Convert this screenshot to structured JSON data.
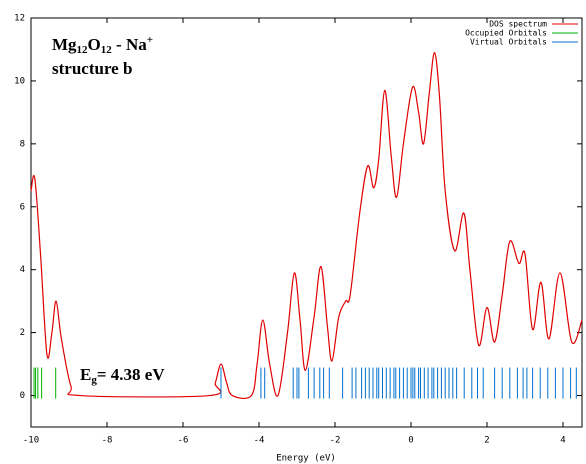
{
  "chart_data": {
    "type": "line",
    "xlabel": "Energy (eV)",
    "xlim": [
      -10,
      4.5
    ],
    "ylim": [
      -1,
      12
    ],
    "xticks": [
      -10,
      -8,
      -6,
      -4,
      -2,
      0,
      2,
      4
    ],
    "yticks": [
      0,
      2,
      4,
      6,
      8,
      10,
      12
    ],
    "legend": "upper right",
    "series": [
      {
        "name": "DOS spectrum",
        "color": "#e00000",
        "x": [
          -10,
          -9.9,
          -9.75,
          -9.58,
          -9.45,
          -9.34,
          -9.2,
          -8.95,
          -8.7,
          -5.3,
          -5.15,
          -5.0,
          -4.85,
          -4.7,
          -4.2,
          -4.05,
          -3.9,
          -3.72,
          -3.5,
          -3.25,
          -3.07,
          -2.92,
          -2.78,
          -2.55,
          -2.37,
          -2.2,
          -2.08,
          -1.9,
          -1.72,
          -1.6,
          -1.35,
          -1.14,
          -0.98,
          -0.85,
          -0.69,
          -0.52,
          -0.38,
          -0.2,
          0.04,
          0.2,
          0.33,
          0.48,
          0.62,
          0.75,
          0.9,
          1.15,
          1.39,
          1.55,
          1.78,
          2.0,
          2.2,
          2.4,
          2.6,
          2.84,
          3.0,
          3.2,
          3.42,
          3.63,
          3.92,
          4.23,
          4.5
        ],
        "values": [
          6.5,
          6.9,
          4.5,
          1.3,
          2.0,
          3.0,
          1.8,
          0.3,
          0,
          0,
          0.4,
          1.0,
          0.4,
          0,
          0,
          1.0,
          2.4,
          1.0,
          0,
          2.0,
          3.9,
          2.4,
          0.8,
          2.5,
          4.1,
          2.2,
          1.1,
          2.5,
          3.0,
          3.2,
          5.8,
          7.3,
          6.6,
          7.5,
          9.7,
          7.6,
          6.3,
          8.0,
          9.8,
          9.0,
          8.0,
          9.6,
          10.9,
          9.5,
          6.5,
          4.6,
          5.8,
          4.0,
          1.6,
          2.8,
          1.7,
          3.2,
          4.9,
          4.2,
          4.5,
          2.1,
          3.6,
          1.8,
          3.9,
          1.7,
          2.4
        ]
      },
      {
        "name": "Occupied Orbitals",
        "color": "#00b000",
        "x": [
          -9.92,
          -9.88,
          -9.82,
          -9.72,
          -9.35
        ]
      },
      {
        "name": "Virtual Orbitals",
        "color": "#0070d0",
        "x": [
          -5.0,
          -3.95,
          -3.85,
          -3.1,
          -3.0,
          -2.95,
          -2.7,
          -2.55,
          -2.4,
          -2.3,
          -2.15,
          -1.8,
          -1.55,
          -1.45,
          -1.3,
          -1.2,
          -1.1,
          -1.0,
          -0.9,
          -0.85,
          -0.75,
          -0.65,
          -0.55,
          -0.45,
          -0.4,
          -0.3,
          -0.2,
          -0.1,
          0.0,
          0.05,
          0.1,
          0.2,
          0.25,
          0.35,
          0.45,
          0.55,
          0.6,
          0.7,
          0.8,
          0.9,
          1.0,
          1.1,
          1.2,
          1.4,
          1.6,
          1.75,
          1.9,
          2.2,
          2.4,
          2.6,
          2.8,
          2.95,
          3.05,
          3.2,
          3.4,
          3.6,
          3.8,
          4.0,
          4.2,
          4.35
        ]
      }
    ],
    "annotations": {
      "molecule": {
        "parts": [
          "Mg",
          "12",
          "O",
          "12",
          " - Na",
          "+"
        ]
      },
      "structure": "structure b",
      "gap": {
        "parts": [
          "E",
          "g",
          "= 4.38 eV"
        ]
      }
    }
  }
}
